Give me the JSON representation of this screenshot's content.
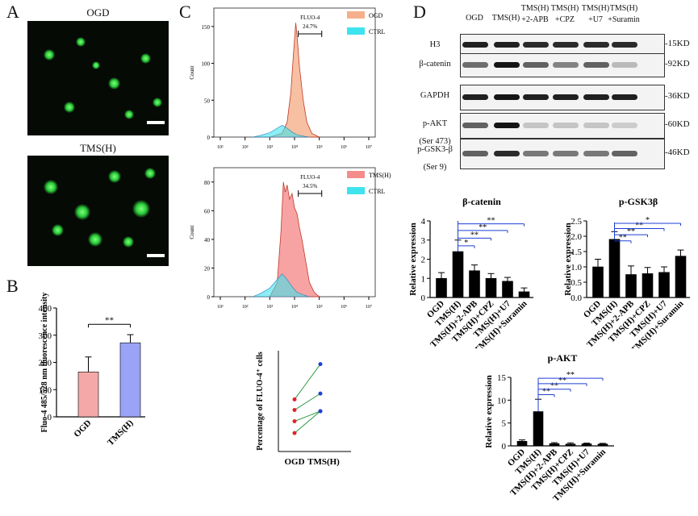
{
  "panels": {
    "A": "A",
    "B": "B",
    "C": "C",
    "D": "D"
  },
  "panelA": {
    "title_top": "OGD",
    "title_bottom": "TMS(H)"
  },
  "panelB": {
    "ylabel": "Fluo-4 485/528 nm fluorescence intensity",
    "sig": "**",
    "colors": {
      "OGD": "#f4a9a8",
      "TMS(H)": "#9aa3f5"
    }
  },
  "panelC": {
    "top": {
      "marker": "FLUO-4",
      "percent": "24.7%",
      "legend": [
        "OGD",
        "CTRL"
      ],
      "colors": [
        "#f5b08b",
        "#3fe3ee"
      ]
    },
    "bottom": {
      "marker": "FLUO-4",
      "percent": "34.5%",
      "legend": [
        "TMS(H)",
        "CTRL"
      ],
      "colors": [
        "#f58c8c",
        "#3fe3ee"
      ]
    },
    "ylabel": "Count",
    "xticks": [
      "10¹",
      "10²",
      "10³",
      "10⁴",
      "10⁵",
      "10⁶",
      "10⁷"
    ],
    "top_yticks": [
      "0",
      "50",
      "100",
      "150"
    ],
    "bottom_yticks": [
      "0",
      "20",
      "40",
      "60",
      "80"
    ]
  },
  "panelD": {
    "lanes": [
      "OGD",
      "TMS(H)",
      "TMS(H)\n+2-APB",
      "TMS(H)\n+CPZ",
      "TMS(H)\n+U7",
      "TMS(H)\n+Suramin"
    ],
    "blots": [
      {
        "name": "H3",
        "mw": "-15KD"
      },
      {
        "name": "β-catenin",
        "mw": "-92KD"
      },
      {
        "name": "GAPDH",
        "mw": "-36KD"
      },
      {
        "name": "p-AKT\n(Ser 473)",
        "mw": "-60KD"
      },
      {
        "name": "p-GSK3-β\n(Ser 9)",
        "mw": "-46KD"
      }
    ]
  },
  "chart_data": [
    {
      "id": "B",
      "type": "bar",
      "categories": [
        "OGD",
        "TMS(H)"
      ],
      "values": [
        165,
        272
      ],
      "errors": [
        55,
        30
      ],
      "ylim": [
        0,
        400
      ],
      "yticks": [
        0,
        100,
        200,
        300,
        400
      ],
      "ylabel": "Fluo-4 485/528 nm fluorescence intensity",
      "annotations": [
        {
          "from": "OGD",
          "to": "TMS(H)",
          "text": "**"
        }
      ]
    },
    {
      "id": "C-dots",
      "type": "scatter",
      "categories": [
        "OGD",
        "TMS(H)"
      ],
      "ylabel": "Percentage of FLUO-4⁺ cells",
      "pairs": [
        [
          31,
          52
        ],
        [
          24.7,
          34.5
        ],
        [
          18,
          24
        ],
        [
          11,
          24
        ]
      ]
    },
    {
      "id": "D-beta-catenin",
      "type": "bar",
      "title": "β-catenin",
      "categories": [
        "OGD",
        "TMS(H)",
        "TMS(H)+2-APB",
        "TMS(H)+CPZ",
        "TMS(H)+U7",
        "TMS(H)+Suramin"
      ],
      "values": [
        1.0,
        2.4,
        1.4,
        1.0,
        0.85,
        0.3
      ],
      "errors": [
        0.3,
        0.6,
        0.3,
        0.25,
        0.2,
        0.2
      ],
      "ylim": [
        0,
        4
      ],
      "yticks": [
        0,
        1,
        2,
        3,
        4
      ],
      "ylabel": "Relative expression",
      "annotations": [
        "*",
        "**",
        "**",
        "**"
      ]
    },
    {
      "id": "D-pGSK3b",
      "type": "bar",
      "title": "p-GSK3β",
      "categories": [
        "OGD",
        "TMS(H)",
        "TMS(H)+2-APB",
        "TMS(H)+CPZ",
        "TMS(H)+U7",
        "TMS(H)+Suramin"
      ],
      "values": [
        1.0,
        1.9,
        0.75,
        0.78,
        0.82,
        1.35
      ],
      "errors": [
        0.25,
        0.25,
        0.28,
        0.2,
        0.18,
        0.2
      ],
      "ylim": [
        0,
        2.5
      ],
      "yticks": [
        0.0,
        0.5,
        1.0,
        1.5,
        2.0,
        2.5
      ],
      "ylabel": "Relative expression",
      "annotations": [
        "**",
        "**",
        "**",
        "*"
      ]
    },
    {
      "id": "D-pAKT",
      "type": "bar",
      "title": "p-AKT",
      "categories": [
        "OGD",
        "TMS(H)",
        "TMS(H)+2-APB",
        "TMS(H)+CPZ",
        "TMS(H)+U7",
        "TMS(H)+Suramin"
      ],
      "values": [
        1.0,
        7.5,
        0.5,
        0.4,
        0.45,
        0.4
      ],
      "errors": [
        0.3,
        2.7,
        0.2,
        0.25,
        0.15,
        0.15
      ],
      "ylim": [
        0,
        15
      ],
      "yticks": [
        0,
        5,
        10,
        15
      ],
      "ylabel": "Relative expression",
      "annotations": [
        "**",
        "**",
        "**",
        "**"
      ]
    }
  ]
}
